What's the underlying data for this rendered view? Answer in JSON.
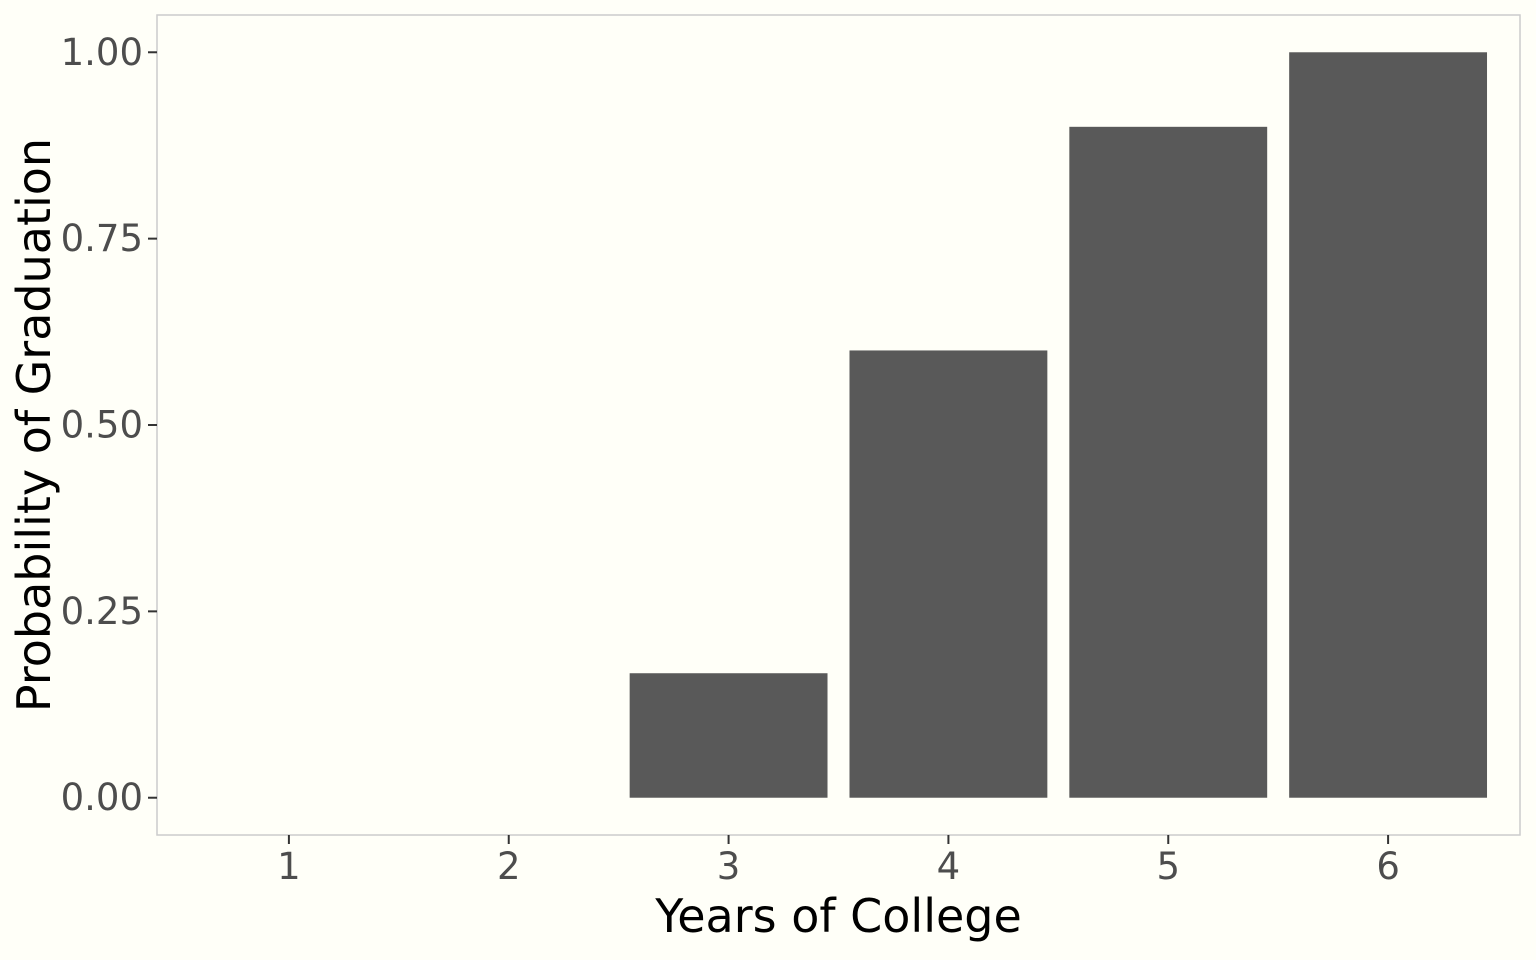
{
  "chart_data": {
    "type": "bar",
    "title": "",
    "xlabel": "Years of College",
    "ylabel": "Probability of Graduation",
    "categories": [
      "1",
      "2",
      "3",
      "4",
      "5",
      "6"
    ],
    "values": [
      0,
      0,
      0.167,
      0.6,
      0.9,
      1.0
    ],
    "ylim": [
      -0.05,
      1.05
    ],
    "yticks": [
      0,
      0.25,
      0.5,
      0.75,
      1.0
    ],
    "ytick_labels": [
      "0.00",
      "0.25",
      "0.50",
      "0.75",
      "1.00"
    ],
    "grid": false,
    "legend": "none",
    "colors": {
      "bar": "#595959",
      "background": "#fffff8",
      "panel_border": "#cccccc",
      "tick_text": "#4d4d4d",
      "axis_title": "#000000"
    }
  }
}
